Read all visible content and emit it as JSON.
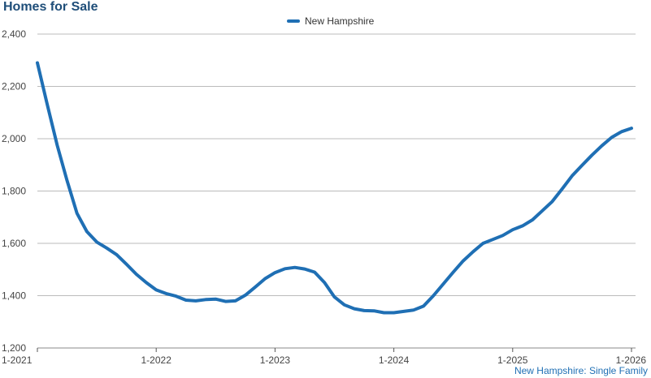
{
  "chart_data": {
    "type": "line",
    "title": "Homes for Sale",
    "xlabel": "",
    "ylabel": "",
    "ylim": [
      1200,
      2400
    ],
    "y_ticks": [
      1200,
      1400,
      1600,
      1800,
      2000,
      2200,
      2400
    ],
    "y_tick_labels": [
      "1,200",
      "1,400",
      "1,600",
      "1,800",
      "2,000",
      "2,200",
      "2,400"
    ],
    "x_ticks": [
      "1-2021",
      "1-2022",
      "1-2023",
      "1-2024",
      "1-2025",
      "1-2026"
    ],
    "grid": "horizontal",
    "legend_position": "top-center",
    "source_note": "New Hampshire: Single Family",
    "colors": {
      "series": "#1f6fb4",
      "grid": "#bbbbbb",
      "title": "#1f4e79"
    },
    "series": [
      {
        "name": "New Hampshire",
        "x": [
          "2021-01",
          "2021-02",
          "2021-03",
          "2021-04",
          "2021-05",
          "2021-06",
          "2021-07",
          "2021-08",
          "2021-09",
          "2021-10",
          "2021-11",
          "2021-12",
          "2022-01",
          "2022-02",
          "2022-03",
          "2022-04",
          "2022-05",
          "2022-06",
          "2022-07",
          "2022-08",
          "2022-09",
          "2022-10",
          "2022-11",
          "2022-12",
          "2023-01",
          "2023-02",
          "2023-03",
          "2023-04",
          "2023-05",
          "2023-06",
          "2023-07",
          "2023-08",
          "2023-09",
          "2023-10",
          "2023-11",
          "2023-12",
          "2024-01",
          "2024-02",
          "2024-03",
          "2024-04",
          "2024-05",
          "2024-06",
          "2024-07",
          "2024-08",
          "2024-09",
          "2024-10",
          "2024-11",
          "2024-12",
          "2025-01",
          "2025-02",
          "2025-03",
          "2025-04",
          "2025-05",
          "2025-06",
          "2025-07",
          "2025-08",
          "2025-09",
          "2025-10",
          "2025-11",
          "2025-12",
          "2026-01"
        ],
        "values": [
          2290,
          2130,
          1975,
          1840,
          1715,
          1645,
          1605,
          1582,
          1557,
          1520,
          1482,
          1450,
          1422,
          1408,
          1398,
          1383,
          1380,
          1385,
          1387,
          1378,
          1380,
          1402,
          1433,
          1465,
          1488,
          1503,
          1508,
          1502,
          1490,
          1450,
          1395,
          1365,
          1350,
          1343,
          1342,
          1335,
          1335,
          1340,
          1345,
          1360,
          1400,
          1445,
          1490,
          1533,
          1568,
          1600,
          1615,
          1630,
          1652,
          1667,
          1690,
          1725,
          1760,
          1808,
          1858,
          1898,
          1937,
          1973,
          2005,
          2027,
          2040
        ]
      }
    ]
  }
}
